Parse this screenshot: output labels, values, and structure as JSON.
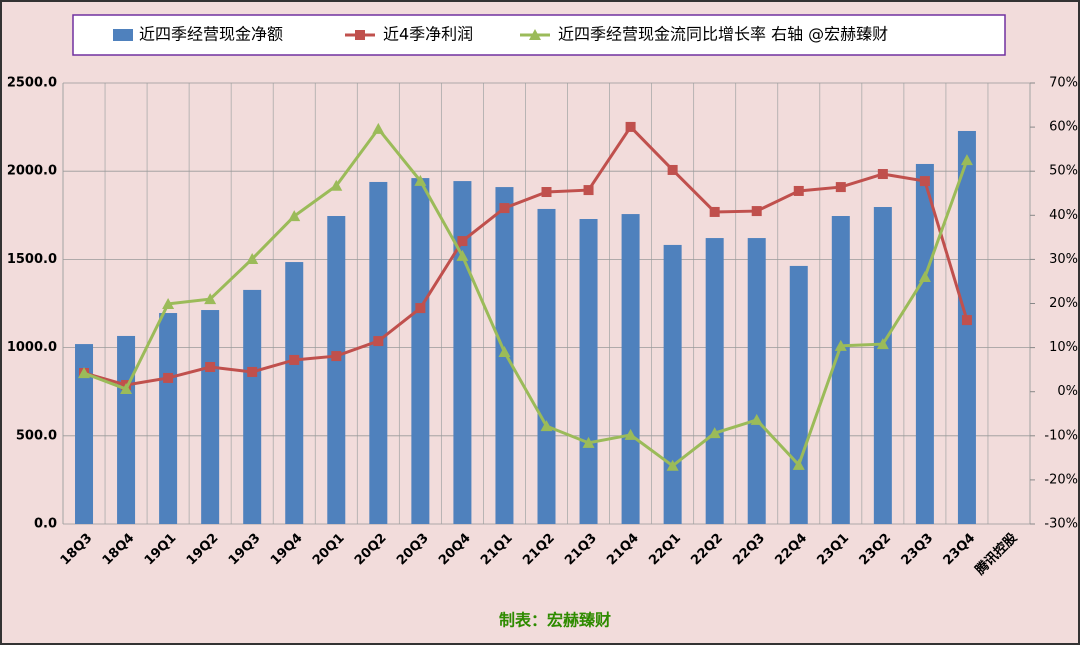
{
  "chart_data": {
    "type": "bar-line",
    "categories": [
      "18Q3",
      "18Q4",
      "19Q1",
      "19Q2",
      "19Q3",
      "19Q4",
      "20Q1",
      "20Q2",
      "20Q3",
      "20Q4",
      "21Q1",
      "21Q2",
      "21Q3",
      "21Q4",
      "22Q1",
      "22Q2",
      "22Q3",
      "22Q4",
      "23Q1",
      "23Q2",
      "23Q3",
      "23Q4",
      "腾讯控股"
    ],
    "series": [
      {
        "name": "近四季经营现金净额",
        "type": "bar",
        "color": "#4f81bd",
        "values": [
          1020,
          1066,
          1196,
          1213,
          1327,
          1485,
          1746,
          1939,
          1961,
          1944,
          1910,
          1786,
          1729,
          1757,
          1582,
          1621,
          1621,
          1463,
          1746,
          1797,
          2041,
          2228,
          null
        ]
      },
      {
        "name": "近4季净利润",
        "type": "line",
        "color": "#c0504d",
        "marker": "square",
        "values": [
          856,
          788,
          828,
          890,
          862,
          930,
          952,
          1037,
          1224,
          1604,
          1791,
          1882,
          1893,
          2251,
          2007,
          1769,
          1774,
          1888,
          1910,
          1984,
          1944,
          1156,
          null
        ]
      },
      {
        "name": "近四季经营现金流同比增长率 右轴 @宏赫臻财",
        "type": "line",
        "axis": "y2",
        "color": "#9bbb59",
        "marker": "triangle",
        "values": [
          4.2,
          0.6,
          19.9,
          21.0,
          30.1,
          39.8,
          46.7,
          59.6,
          47.8,
          30.8,
          9.0,
          -7.8,
          -11.6,
          -9.8,
          -16.8,
          -9.4,
          -6.4,
          -16.6,
          10.4,
          10.8,
          26.0,
          52.5,
          null
        ]
      }
    ],
    "ylim": [
      0,
      2500
    ],
    "yticks": [
      {
        "value": 0,
        "label": "0.0"
      },
      {
        "value": 500,
        "label": "500.0"
      },
      {
        "value": 1000,
        "label": "1000.0"
      },
      {
        "value": 1500,
        "label": "1500.0"
      },
      {
        "value": 2000,
        "label": "2000.0"
      },
      {
        "value": 2500,
        "label": "2500.0"
      }
    ],
    "y2lim": [
      -30,
      70
    ],
    "y2ticks": [
      {
        "value": -30,
        "label": "-30%"
      },
      {
        "value": -20,
        "label": "-20%"
      },
      {
        "value": -10,
        "label": "-10%"
      },
      {
        "value": 0,
        "label": "0%"
      },
      {
        "value": 10,
        "label": "10%"
      },
      {
        "value": 20,
        "label": "20%"
      },
      {
        "value": 30,
        "label": "30%"
      },
      {
        "value": 40,
        "label": "40%"
      },
      {
        "value": 50,
        "label": "50%"
      },
      {
        "value": 60,
        "label": "60%"
      },
      {
        "value": 70,
        "label": "70%"
      }
    ],
    "grid": true,
    "legend": "top",
    "source": "制表：宏赫臻财"
  }
}
